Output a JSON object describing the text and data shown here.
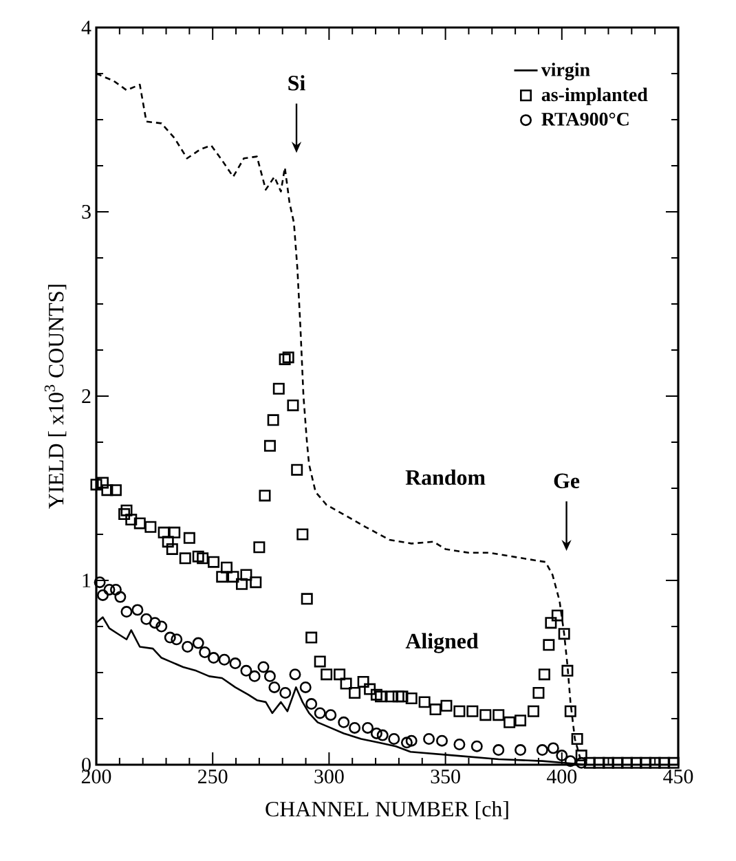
{
  "chart_data": {
    "type": "scatter",
    "xlabel": "CHANNEL NUMBER [ch]",
    "ylabel": "YIELD [ x10$^{3}$ COUNTS]",
    "xlim": [
      200,
      450
    ],
    "ylim": [
      0,
      4
    ],
    "xticks": [
      200,
      {
        "value": 210,
        "label": null
      },
      {
        "value": 220,
        "label": null
      },
      {
        "value": 230,
        "label": null
      },
      {
        "value": 240,
        "label": null
      },
      250,
      {
        "value": 260,
        "label": null
      },
      {
        "value": 270,
        "label": null
      },
      {
        "value": 280,
        "label": null
      },
      {
        "value": 290,
        "label": null
      },
      300,
      {
        "value": 310,
        "label": null
      },
      {
        "value": 320,
        "label": null
      },
      {
        "value": 330,
        "label": null
      },
      {
        "value": 340,
        "label": null
      },
      350,
      {
        "value": 360,
        "label": null
      },
      {
        "value": 370,
        "label": null
      },
      {
        "value": 380,
        "label": null
      },
      {
        "value": 390,
        "label": null
      },
      400,
      {
        "value": 410,
        "label": null
      },
      {
        "value": 420,
        "label": null
      },
      {
        "value": 430,
        "label": null
      },
      {
        "value": 440,
        "label": null
      },
      450
    ],
    "yticks": [
      0,
      {
        "value": 0.25,
        "label": null
      },
      {
        "value": 0.5,
        "label": null
      },
      {
        "value": 0.75,
        "label": null
      },
      1,
      {
        "value": 1.25,
        "label": null
      },
      {
        "value": 1.5,
        "label": null
      },
      {
        "value": 1.75,
        "label": null
      },
      2,
      {
        "value": 2.25,
        "label": null
      },
      {
        "value": 2.5,
        "label": null
      },
      {
        "value": 2.75,
        "label": null
      },
      3,
      {
        "value": 3.25,
        "label": null
      },
      {
        "value": 3.5,
        "label": null
      },
      {
        "value": 3.75,
        "label": null
      },
      4
    ],
    "grid": false,
    "legend": "top right",
    "annotations": [
      "Si",
      "Ge",
      "Random",
      "Aligned"
    ],
    "series": [
      {
        "name": "virgin",
        "type": "line",
        "line_style": "solid",
        "marker": "none",
        "color": "#000000",
        "x": [
          200,
          202.8,
          205.6,
          209.3,
          213,
          215,
          218.7,
          224.3,
          228,
          231.7,
          237.3,
          242.9,
          248.5,
          254,
          259.7,
          265.3,
          269,
          272.8,
          275.6,
          279.3,
          282.1,
          285.8,
          288.6,
          291.4,
          295.1,
          300.7,
          306.3,
          313.8,
          321.3,
          328.7,
          335,
          354,
          372.8,
          391.6,
          401,
          410
        ],
        "values": [
          0.77,
          0.8,
          0.74,
          0.71,
          0.68,
          0.73,
          0.64,
          0.63,
          0.58,
          0.56,
          0.53,
          0.51,
          0.48,
          0.47,
          0.42,
          0.38,
          0.35,
          0.34,
          0.28,
          0.34,
          0.29,
          0.42,
          0.34,
          0.28,
          0.23,
          0.2,
          0.17,
          0.14,
          0.12,
          0.1,
          0.07,
          0.05,
          0.03,
          0.02,
          0.01,
          0
        ]
      },
      {
        "name": "as-implanted",
        "marker": "square",
        "color": "#000000",
        "x": [
          200,
          202.8,
          204.7,
          208.4,
          212,
          213,
          215,
          218.7,
          223.3,
          229,
          230.8,
          232.6,
          233.6,
          238.2,
          240,
          243.8,
          245.7,
          250.4,
          254,
          256,
          258.8,
          262.5,
          264.4,
          268.5,
          270,
          272.4,
          274.6,
          276,
          278.4,
          281,
          282.5,
          284.5,
          286.2,
          288.6,
          290.5,
          292.4,
          296.1,
          298.9,
          304.5,
          307.3,
          311,
          314.7,
          317.5,
          320.4,
          322.2,
          326.9,
          329.8,
          331.5,
          335.4,
          341,
          345.7,
          350.4,
          356,
          361.6,
          367.2,
          372.8,
          377.5,
          382.2,
          387.8,
          390,
          392.5,
          394.4,
          395.3,
          398.1,
          401,
          402.4,
          403.7,
          406.6,
          408.4,
          412,
          416,
          420,
          424,
          428,
          432,
          436,
          440,
          444,
          448
        ],
        "values": [
          1.52,
          1.53,
          1.49,
          1.49,
          1.36,
          1.38,
          1.33,
          1.31,
          1.29,
          1.26,
          1.21,
          1.17,
          1.26,
          1.12,
          1.23,
          1.13,
          1.12,
          1.1,
          1.02,
          1.07,
          1.02,
          0.98,
          1.03,
          0.99,
          1.18,
          1.46,
          1.73,
          1.87,
          2.04,
          2.2,
          2.21,
          1.95,
          1.6,
          1.25,
          0.9,
          0.69,
          0.56,
          0.49,
          0.49,
          0.44,
          0.39,
          0.45,
          0.41,
          0.38,
          0.37,
          0.37,
          0.37,
          0.37,
          0.36,
          0.34,
          0.3,
          0.32,
          0.29,
          0.29,
          0.27,
          0.27,
          0.23,
          0.24,
          0.29,
          0.39,
          0.49,
          0.65,
          0.77,
          0.81,
          0.71,
          0.51,
          0.29,
          0.14,
          0.05,
          0.01,
          0.01,
          0.01,
          0.01,
          0.01,
          0.01,
          0.01,
          0.01,
          0.01,
          0.01
        ]
      },
      {
        "name": "RTA900°C",
        "marker": "circle",
        "color": "#000000",
        "x": [
          201.5,
          202.8,
          205.6,
          208.4,
          210.3,
          213,
          217.7,
          221.5,
          225.2,
          228,
          231.7,
          234.5,
          239.2,
          243.8,
          246.6,
          250.4,
          255,
          259.7,
          264.4,
          268,
          271.8,
          274.6,
          276.5,
          281.2,
          285.4,
          289.9,
          292.4,
          296.1,
          300.7,
          306.3,
          311,
          316.6,
          320.4,
          323,
          327.9,
          333.4,
          335.4,
          342.9,
          348.5,
          356,
          363.5,
          372.8,
          382.2,
          391.6,
          396.3,
          400,
          403.7,
          408.4
        ],
        "values": [
          0.99,
          0.92,
          0.95,
          0.95,
          0.91,
          0.83,
          0.84,
          0.79,
          0.77,
          0.75,
          0.69,
          0.68,
          0.64,
          0.66,
          0.61,
          0.58,
          0.57,
          0.55,
          0.51,
          0.48,
          0.53,
          0.48,
          0.42,
          0.39,
          0.49,
          0.42,
          0.33,
          0.28,
          0.27,
          0.23,
          0.2,
          0.2,
          0.17,
          0.16,
          0.14,
          0.12,
          0.13,
          0.14,
          0.13,
          0.11,
          0.1,
          0.08,
          0.08,
          0.08,
          0.09,
          0.05,
          0.02,
          0.01
        ]
      },
      {
        "type": "line",
        "line_style": "dashed",
        "marker": "none",
        "color": "#000000",
        "x": [
          200,
          207.5,
          213,
          218.7,
          221.5,
          228,
          233.6,
          239,
          244.8,
          249.4,
          254,
          258.8,
          263.4,
          269,
          272.8,
          276.5,
          279.3,
          281,
          283,
          284.9,
          286.4,
          287.7,
          289,
          290.5,
          291.4,
          294.2,
          298.9,
          306,
          315.7,
          326,
          335.4,
          344.8,
          350,
          360,
          369,
          378.5,
          388,
          393,
          396,
          399,
          401,
          402.4,
          403.7,
          405.6,
          408
        ],
        "values": [
          3.75,
          3.71,
          3.66,
          3.69,
          3.49,
          3.48,
          3.4,
          3.29,
          3.34,
          3.36,
          3.28,
          3.19,
          3.29,
          3.3,
          3.12,
          3.19,
          3.11,
          3.24,
          3.05,
          2.94,
          2.69,
          2.37,
          2,
          1.75,
          1.63,
          1.48,
          1.41,
          1.36,
          1.29,
          1.22,
          1.2,
          1.21,
          1.17,
          1.15,
          1.15,
          1.13,
          1.11,
          1.1,
          1.03,
          0.89,
          0.71,
          0.54,
          0.34,
          0.14,
          0.03
        ]
      }
    ]
  }
}
